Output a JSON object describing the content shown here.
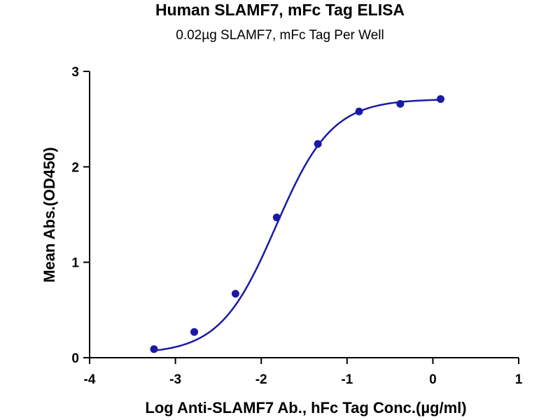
{
  "chart_data": {
    "type": "scatter",
    "title": "Human SLAMF7, mFc Tag ELISA",
    "subtitle": "0.02µg SLAMF7, mFc Tag Per Well",
    "xlabel": "Log Anti-SLAMF7 Ab., hFc Tag Conc.(µg/ml)",
    "ylabel": "Mean Abs.(OD450)",
    "xlim": [
      -4,
      1
    ],
    "ylim": [
      0,
      3
    ],
    "xticks": [
      -4,
      -3,
      -2,
      -1,
      0,
      1
    ],
    "yticks": [
      0,
      1,
      2,
      3
    ],
    "xtick_labels": [
      "-4",
      "-3",
      "-2",
      "-1",
      "0",
      "1"
    ],
    "ytick_labels": [
      "0",
      "1",
      "2",
      "3"
    ],
    "grid": false,
    "fit": "sigmoidal",
    "color": "#1a1aa6",
    "series": [
      {
        "x": [
          -3.25,
          -2.78,
          -2.3,
          -1.82,
          -1.34,
          -0.86,
          -0.38,
          0.09
        ],
        "y": [
          0.09,
          0.27,
          0.67,
          1.47,
          2.24,
          2.58,
          2.66,
          2.71
        ]
      }
    ]
  }
}
